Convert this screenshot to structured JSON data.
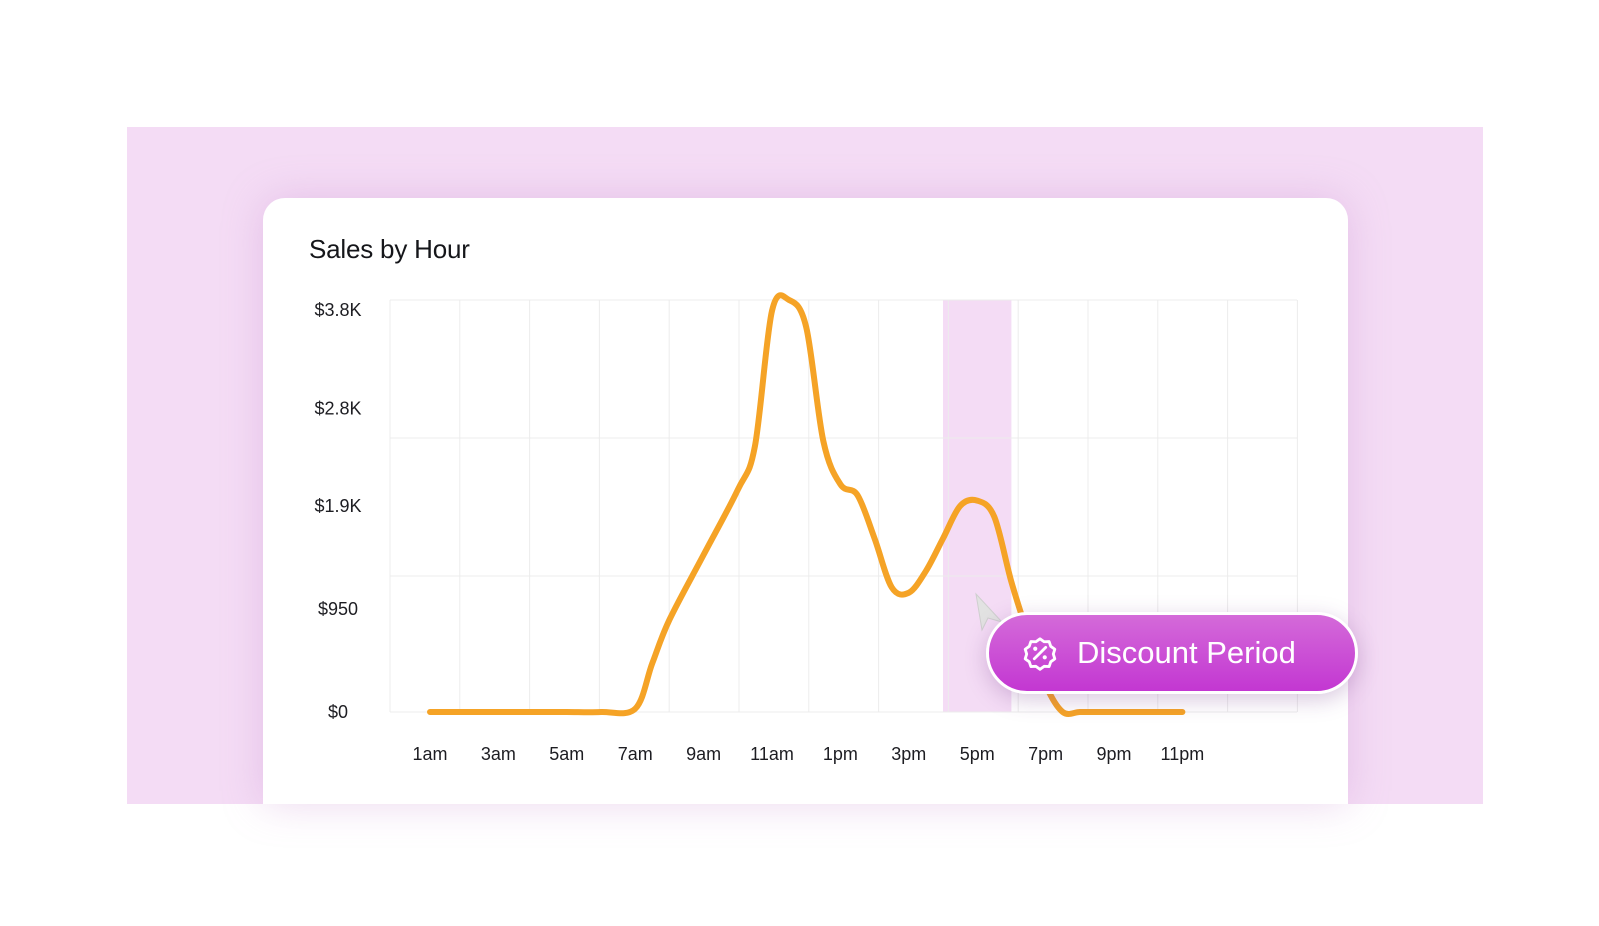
{
  "chart_data": {
    "type": "line",
    "title": "Sales by Hour",
    "xlabel": "",
    "ylabel": "",
    "x_tick_labels": [
      "1am",
      "3am",
      "5am",
      "7am",
      "9am",
      "11am",
      "1pm",
      "3pm",
      "5pm",
      "7pm",
      "9pm",
      "11pm"
    ],
    "y_tick_labels": [
      "$3.8K",
      "$2.8K",
      "$1.9K",
      "$950",
      "$0"
    ],
    "y_tick_values": [
      3800,
      2800,
      1900,
      950,
      0
    ],
    "ylim": [
      0,
      3800
    ],
    "xlim": [
      0,
      25
    ],
    "grid": true,
    "line_color": "#f5a326",
    "highlight_color": "#f4dcf5",
    "highlight_range": [
      16,
      18
    ],
    "series": [
      {
        "x": [
          1,
          2,
          3,
          4,
          5,
          6,
          7,
          7.5,
          8,
          9,
          10,
          10.5,
          11,
          11.5,
          12,
          12.5,
          13,
          13.5,
          14,
          14.5,
          15,
          15.5,
          16,
          16.5,
          17,
          17.5,
          18,
          18.5,
          19,
          19.5,
          20,
          20.5,
          21,
          22,
          23
        ],
        "y": [
          0,
          0,
          0,
          0,
          0,
          0,
          30,
          450,
          850,
          1450,
          2050,
          2450,
          3700,
          3800,
          3550,
          2500,
          2100,
          2000,
          1600,
          1150,
          1100,
          1300,
          1600,
          1900,
          1950,
          1800,
          1200,
          700,
          250,
          0,
          0,
          0,
          0,
          0,
          0
        ]
      }
    ]
  },
  "badge": {
    "label": "Discount Period",
    "icon": "discount-badge-icon",
    "color": "#c83ad4"
  }
}
